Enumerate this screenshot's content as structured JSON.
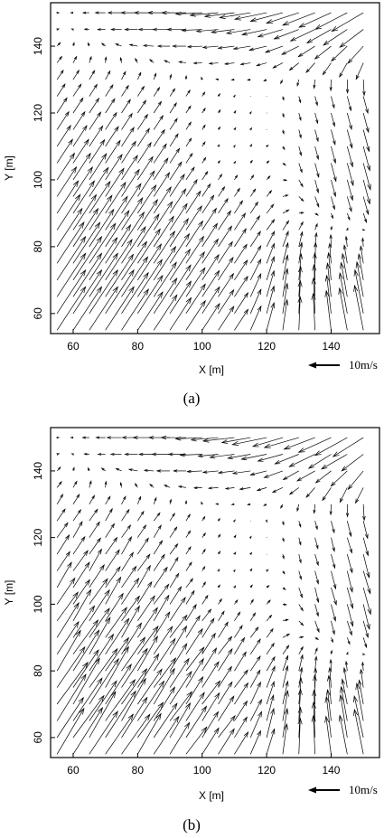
{
  "chart_data": [
    {
      "type": "vector-field",
      "panel_caption": "(a)",
      "xlabel": "X [m]",
      "ylabel": "Y [m]",
      "xlim": [
        53,
        155
      ],
      "ylim": [
        54,
        153
      ],
      "xticks": [
        60,
        80,
        100,
        120,
        140
      ],
      "yticks": [
        60,
        80,
        100,
        120,
        140
      ],
      "grid": false,
      "scale_arrow": {
        "label": "10m/s",
        "value": 10,
        "direction": "left"
      }
    },
    {
      "type": "vector-field",
      "panel_caption": "(b)",
      "xlabel": "X [m]",
      "ylabel": "Y [m]",
      "xlim": [
        53,
        155
      ],
      "ylim": [
        54,
        153
      ],
      "xticks": [
        60,
        80,
        100,
        120,
        140
      ],
      "yticks": [
        60,
        80,
        100,
        120,
        140
      ],
      "grid": false,
      "scale_arrow": {
        "label": "10m/s",
        "value": 10,
        "direction": "left"
      }
    }
  ],
  "colors": {
    "ink": "#000000",
    "background": "#ffffff"
  }
}
